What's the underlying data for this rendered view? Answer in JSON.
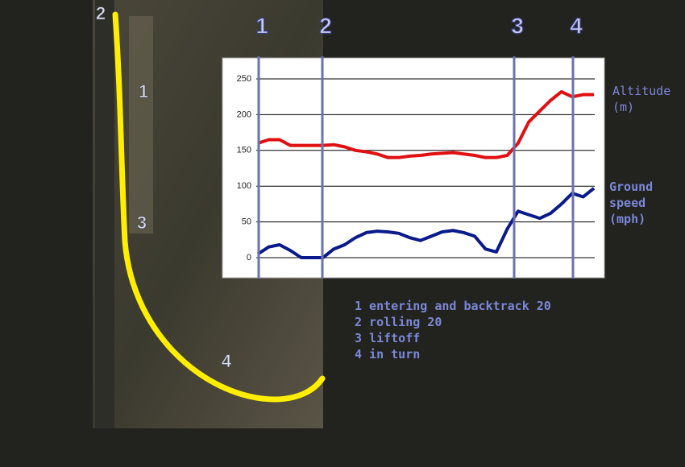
{
  "chart_data": {
    "type": "line",
    "series": [
      {
        "name": "Altitude (m)",
        "color": "#e01010",
        "values": [
          160,
          165,
          165,
          157,
          157,
          157,
          157,
          158,
          155,
          150,
          148,
          145,
          140,
          140,
          142,
          143,
          145,
          146,
          147,
          145,
          143,
          140,
          140,
          143,
          160,
          190,
          205,
          220,
          232,
          225,
          228,
          228
        ]
      },
      {
        "name": "Ground speed (mph)",
        "color": "#0a1a8a",
        "values": [
          5,
          15,
          18,
          10,
          0,
          0,
          0,
          12,
          18,
          28,
          35,
          37,
          36,
          34,
          28,
          24,
          30,
          36,
          38,
          35,
          30,
          12,
          8,
          40,
          65,
          60,
          55,
          62,
          75,
          90,
          85,
          97
        ]
      }
    ],
    "ylim": [
      0,
      250
    ],
    "yticks": [
      0,
      50,
      100,
      150,
      200,
      250
    ],
    "grid": true,
    "event_labels": [
      "1",
      "2",
      "3",
      "4"
    ],
    "track_labels": [
      "2",
      "1",
      "3",
      "4"
    ],
    "notes": [
      "1 entering and backtrack 20",
      "2 rolling 20",
      "3 liftoff",
      "4 in turn"
    ]
  }
}
